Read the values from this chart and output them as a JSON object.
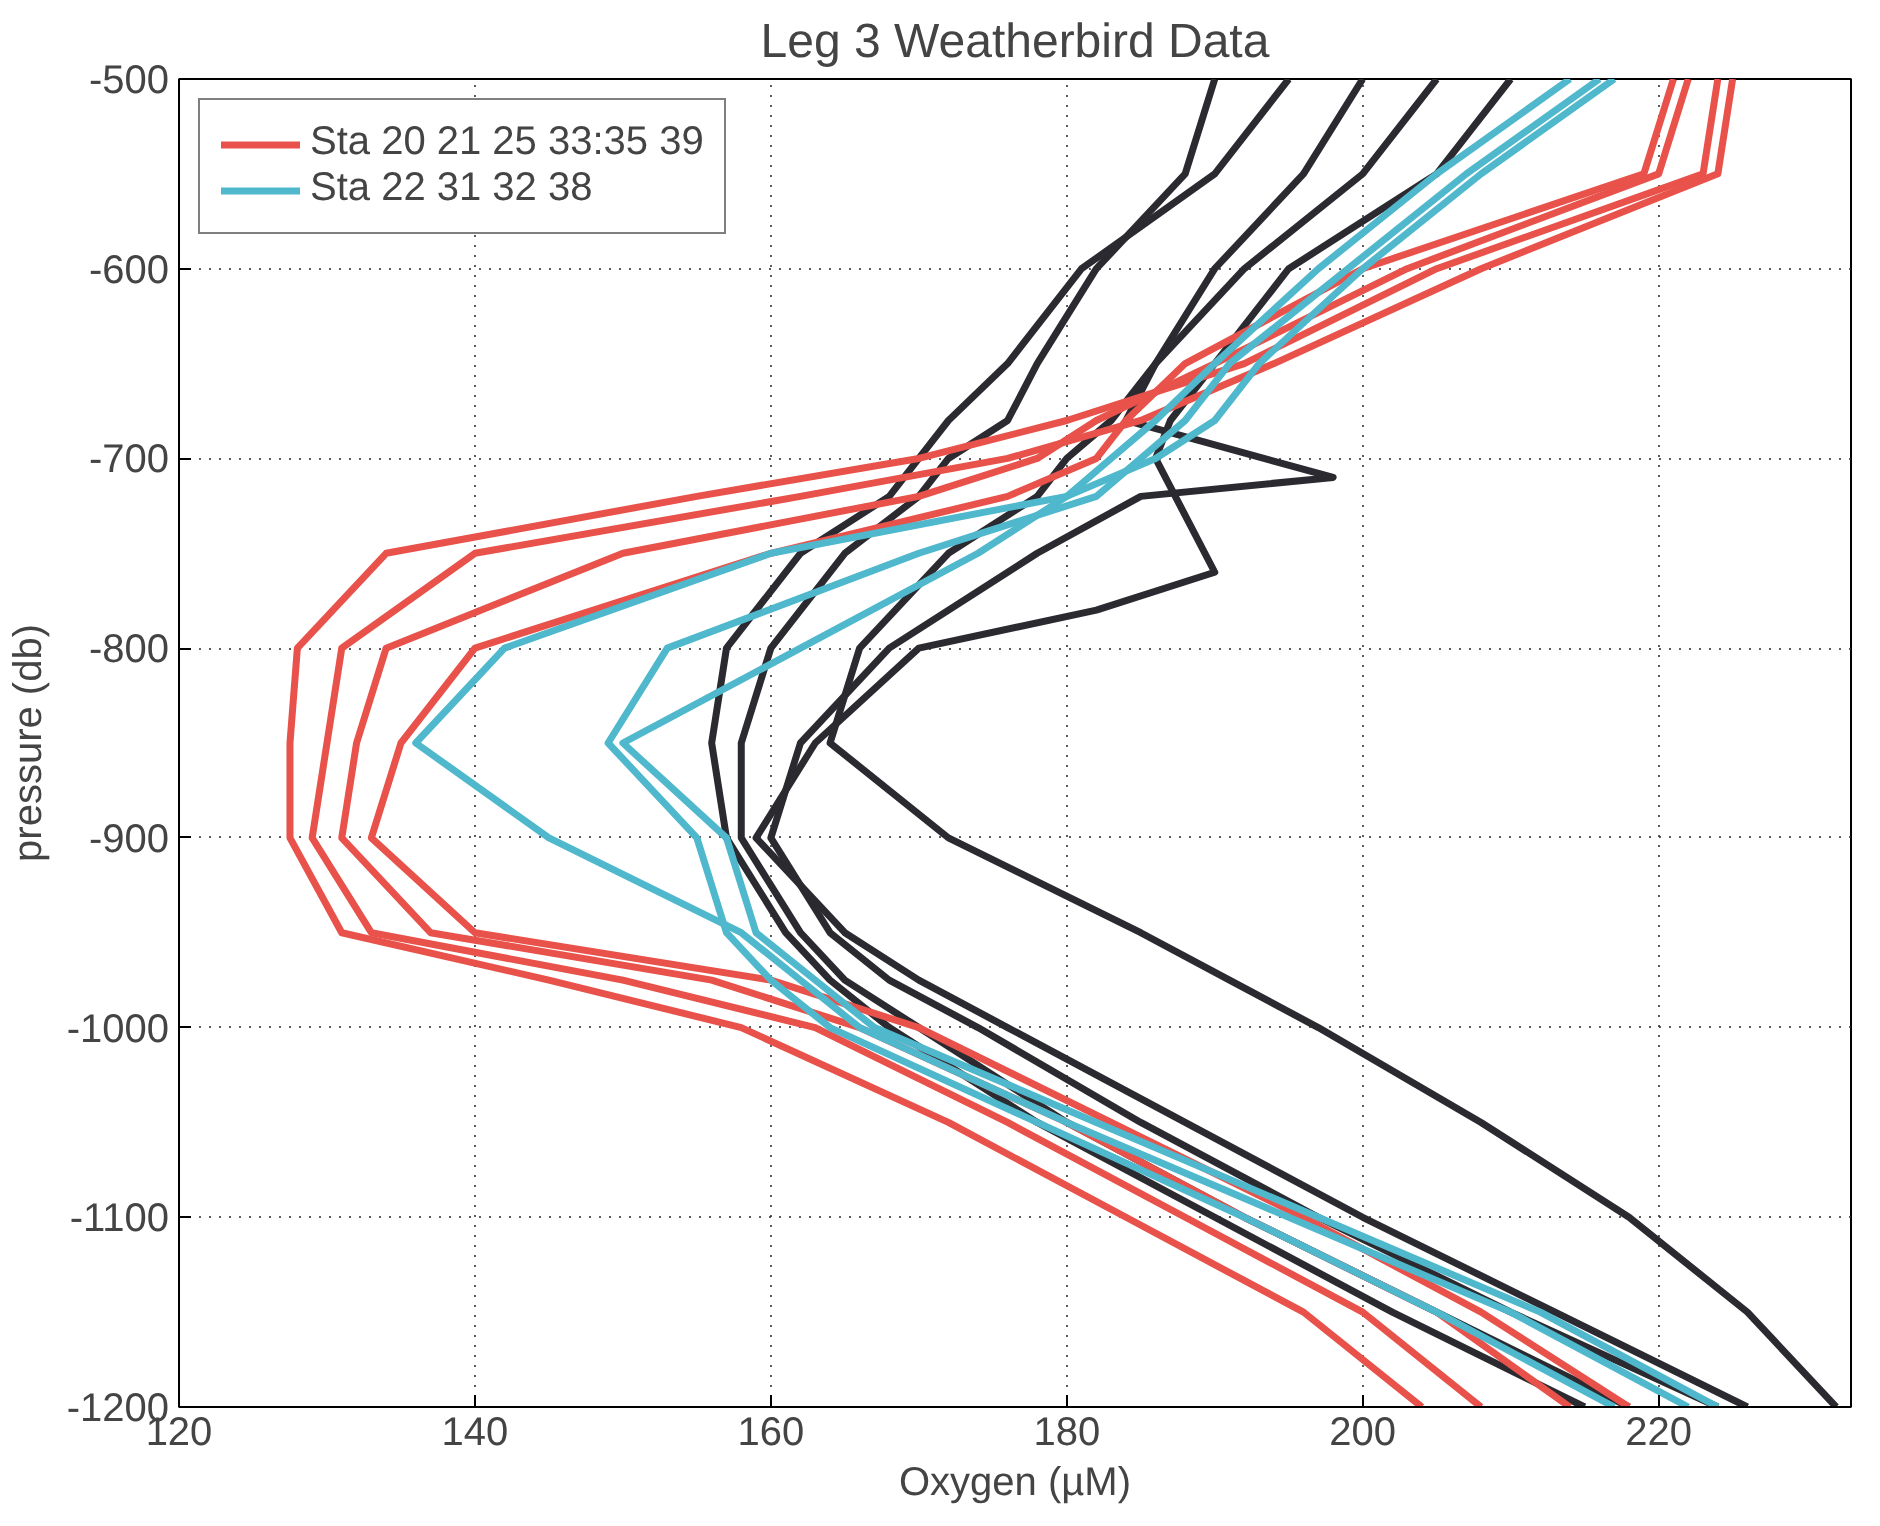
{
  "chart_data": {
    "type": "line",
    "title": "Leg 3 Weatherbird Data",
    "xlabel": "Oxygen (µM)",
    "ylabel": "pressure (db)",
    "xlim": [
      120,
      233
    ],
    "ylim": [
      -1200,
      -500
    ],
    "xticks": [
      120,
      140,
      160,
      180,
      200,
      220
    ],
    "yticks": [
      -1200,
      -1100,
      -1000,
      -900,
      -800,
      -700,
      -600,
      -500
    ],
    "grid": true,
    "legend": "top left",
    "line_style": "solid",
    "series": [
      {
        "color": "#2a2a30",
        "x": [
          190,
          188,
          182,
          178,
          176,
          172,
          170,
          165,
          160,
          158,
          158,
          162,
          165,
          170,
          180,
          192,
          205,
          218
        ],
        "values": [
          -500,
          -550,
          -600,
          -650,
          -680,
          -700,
          -720,
          -750,
          -800,
          -850,
          -900,
          -950,
          -975,
          -1000,
          -1050,
          -1100,
          -1150,
          -1200
        ]
      },
      {
        "color": "#2a2a30",
        "x": [
          200,
          196,
          190,
          186,
          184,
          198,
          185,
          178,
          168,
          162,
          160,
          164,
          168,
          174,
          185,
          197,
          210,
          224
        ],
        "values": [
          -500,
          -550,
          -600,
          -650,
          -680,
          -710,
          -720,
          -750,
          -800,
          -850,
          -900,
          -950,
          -975,
          -1000,
          -1050,
          -1100,
          -1150,
          -1200
        ]
      },
      {
        "color": "#2a2a30",
        "x": [
          210,
          205,
          195,
          190,
          187,
          186,
          190,
          182,
          170,
          163,
          159,
          165,
          170,
          176,
          188,
          200,
          213,
          226
        ],
        "values": [
          -500,
          -550,
          -600,
          -650,
          -680,
          -700,
          -760,
          -780,
          -800,
          -850,
          -900,
          -950,
          -975,
          -1000,
          -1050,
          -1100,
          -1150,
          -1200
        ]
      },
      {
        "color": "#2a2a30",
        "x": [
          195,
          190,
          181,
          176,
          172,
          170,
          168,
          162,
          157,
          156,
          157,
          161,
          164,
          168,
          178,
          190,
          202,
          215
        ],
        "values": [
          -500,
          -550,
          -600,
          -650,
          -680,
          -700,
          -720,
          -750,
          -800,
          -850,
          -900,
          -950,
          -975,
          -1000,
          -1050,
          -1100,
          -1150,
          -1200
        ]
      },
      {
        "color": "#2a2a30",
        "x": [
          205,
          200,
          192,
          186,
          183,
          180,
          178,
          172,
          166,
          164,
          172,
          185,
          191,
          197,
          208,
          218,
          226,
          232
        ],
        "values": [
          -500,
          -550,
          -600,
          -650,
          -680,
          -700,
          -720,
          -750,
          -800,
          -850,
          -900,
          -950,
          -975,
          -1000,
          -1050,
          -1100,
          -1150,
          -1200
        ]
      },
      {
        "name": "Sta 20 21 25 33:35 39",
        "color": "#e8524a",
        "x": [
          224,
          223,
          205,
          192,
          180,
          170,
          155,
          134,
          128,
          127.5,
          127.5,
          131,
          145,
          158,
          172,
          184,
          196,
          204
        ],
        "values": [
          -500,
          -550,
          -600,
          -650,
          -680,
          -700,
          -720,
          -750,
          -800,
          -850,
          -900,
          -950,
          -975,
          -1000,
          -1050,
          -1100,
          -1150,
          -1200
        ]
      },
      {
        "color": "#e8524a",
        "x": [
          225,
          224,
          208,
          194,
          185,
          176,
          162,
          140,
          131,
          130,
          129,
          133,
          150,
          163,
          176,
          188,
          200,
          208
        ],
        "values": [
          -500,
          -550,
          -600,
          -650,
          -680,
          -700,
          -720,
          -750,
          -800,
          -850,
          -900,
          -950,
          -975,
          -1000,
          -1050,
          -1100,
          -1150,
          -1200
        ]
      },
      {
        "color": "#e8524a",
        "x": [
          222,
          220,
          203,
          190,
          182,
          178,
          170,
          150,
          134,
          132,
          131,
          137,
          156,
          166,
          180,
          192,
          205,
          214
        ],
        "values": [
          -500,
          -550,
          -600,
          -650,
          -680,
          -700,
          -720,
          -750,
          -800,
          -850,
          -900,
          -950,
          -975,
          -1000,
          -1050,
          -1100,
          -1150,
          -1200
        ]
      },
      {
        "color": "#e8524a",
        "x": [
          221,
          219,
          200,
          188,
          184,
          182,
          176,
          160,
          140,
          135,
          133,
          140,
          160,
          170,
          183,
          196,
          208,
          218
        ],
        "values": [
          -500,
          -550,
          -600,
          -650,
          -680,
          -700,
          -720,
          -750,
          -800,
          -850,
          -900,
          -950,
          -975,
          -1000,
          -1050,
          -1100,
          -1150,
          -1200
        ]
      },
      {
        "name": "Sta 22 31 32 38",
        "color": "#4fb8cc",
        "x": [
          217,
          208,
          200,
          193,
          190,
          186,
          180,
          160,
          142,
          136,
          145,
          158,
          162,
          166,
          180,
          195,
          210,
          222
        ],
        "values": [
          -500,
          -550,
          -600,
          -650,
          -680,
          -700,
          -720,
          -750,
          -800,
          -850,
          -900,
          -950,
          -975,
          -1000,
          -1050,
          -1100,
          -1150,
          -1200
        ]
      },
      {
        "color": "#4fb8cc",
        "x": [
          216,
          207,
          199,
          191,
          188,
          185,
          182,
          170,
          153,
          149,
          155,
          157,
          160,
          164,
          178,
          192,
          205,
          217
        ],
        "values": [
          -500,
          -550,
          -600,
          -650,
          -680,
          -700,
          -720,
          -750,
          -800,
          -850,
          -900,
          -950,
          -975,
          -1000,
          -1050,
          -1100,
          -1150,
          -1200
        ]
      },
      {
        "color": "#4fb8cc",
        "x": [
          214,
          205,
          197,
          190,
          186,
          183,
          180,
          174,
          162,
          150,
          157,
          159,
          163,
          167,
          182,
          197,
          212,
          224
        ],
        "values": [
          -500,
          -550,
          -600,
          -650,
          -680,
          -700,
          -720,
          -750,
          -800,
          -850,
          -900,
          -950,
          -975,
          -1000,
          -1050,
          -1100,
          -1150,
          -1200
        ]
      }
    ]
  }
}
